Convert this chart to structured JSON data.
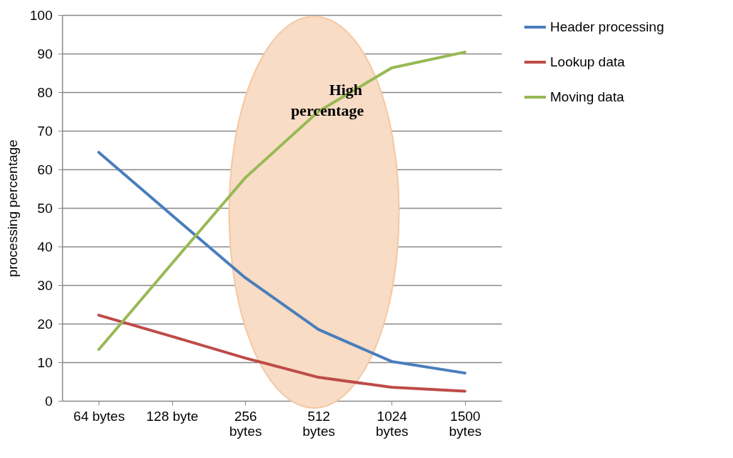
{
  "chart_data": {
    "type": "line",
    "ylabel": "processing percentage",
    "categories": [
      "64 bytes",
      "128 byte",
      "256 bytes",
      "512 bytes",
      "1024 bytes",
      "1500 bytes"
    ],
    "series": [
      {
        "name": "Header processing",
        "color": "#4a7ebb",
        "values": [
          64.4,
          48.1,
          31.9,
          18.5,
          10.2,
          7.2
        ]
      },
      {
        "name": "Lookup data",
        "color": "#be4b48",
        "values": [
          22.2,
          16.7,
          11.1,
          6.1,
          3.5,
          2.5
        ]
      },
      {
        "name": "Moving data",
        "color": "#98b954",
        "values": [
          13.3,
          35.6,
          57.8,
          75,
          86.3,
          90.4
        ]
      }
    ],
    "ylim": [
      0,
      100
    ],
    "yticks": [
      0,
      10,
      20,
      30,
      40,
      50,
      60,
      70,
      80,
      90,
      100
    ],
    "grid": "y",
    "legend": "right",
    "marker": "none",
    "annotations": [
      "High percentage"
    ]
  }
}
